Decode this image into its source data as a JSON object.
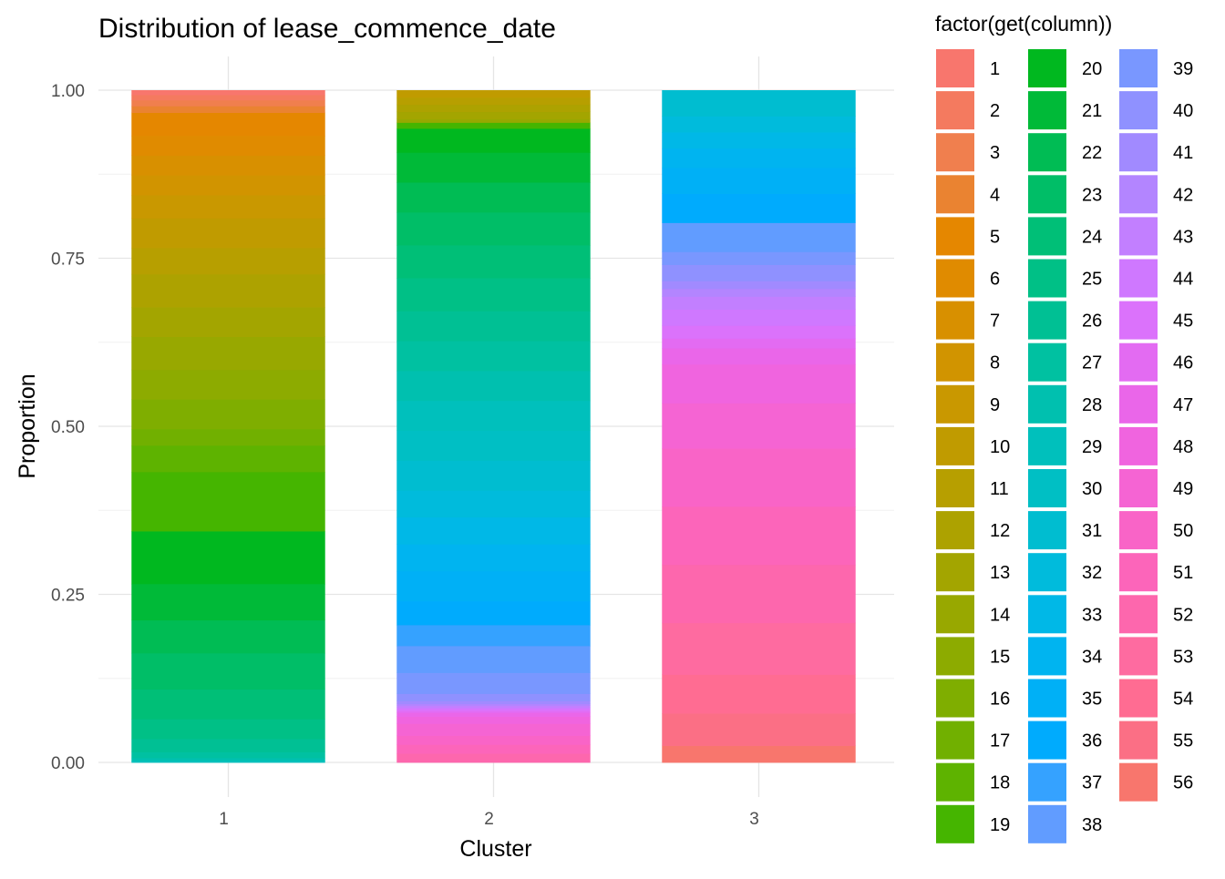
{
  "chart_data": {
    "type": "bar",
    "stacked": true,
    "title": "Distribution of lease_commence_date",
    "xlabel": "Cluster",
    "ylabel": "Proportion",
    "ylim": [
      0,
      1
    ],
    "grid": true,
    "legend_position": "right",
    "legend_title": "factor(get(column))",
    "categories": [
      "1",
      "2",
      "3"
    ],
    "y_ticks": [
      "0.00",
      "0.25",
      "0.50",
      "0.75",
      "1.00"
    ],
    "y_tick_values": [
      0,
      0.25,
      0.5,
      0.75,
      1
    ],
    "legend_levels": [
      "1",
      "2",
      "3",
      "4",
      "5",
      "6",
      "7",
      "8",
      "9",
      "10",
      "11",
      "12",
      "13",
      "14",
      "15",
      "16",
      "17",
      "18",
      "19",
      "20",
      "21",
      "22",
      "23",
      "24",
      "25",
      "26",
      "27",
      "28",
      "29",
      "30",
      "31",
      "32",
      "33",
      "34",
      "35",
      "36",
      "37",
      "38",
      "39",
      "40",
      "41",
      "42",
      "43",
      "44",
      "45",
      "46",
      "47",
      "48",
      "49",
      "50",
      "51",
      "52",
      "53",
      "54",
      "55",
      "56"
    ],
    "level_colors": [
      "#F8766D",
      "#F47A5F",
      "#F07F4E",
      "#EA8331",
      "#E58700",
      "#E08B00",
      "#D89000",
      "#D19400",
      "#C99800",
      "#C09B00",
      "#B79F00",
      "#ADA200",
      "#A3A500",
      "#98A800",
      "#8DAB00",
      "#7FAE00",
      "#71B000",
      "#5EB300",
      "#45B500",
      "#00B81F",
      "#00BA38",
      "#00BC54",
      "#00BE67",
      "#00BF77",
      "#00C086",
      "#00C094",
      "#00C1A1",
      "#00C0AF",
      "#00C0BC",
      "#00BFC4",
      "#00BDD0",
      "#00BBDC",
      "#00B8E7",
      "#00B4F0",
      "#00B0F6",
      "#00ABFD",
      "#35A2FF",
      "#619CFF",
      "#7997FF",
      "#8F91FF",
      "#A18AFF",
      "#B385FF",
      "#C27FFF",
      "#CF78FF",
      "#DB72FB",
      "#E36BF2",
      "#EA66E9",
      "#F064DF",
      "#F564D3",
      "#F964C7",
      "#FC65BA",
      "#FD67AD",
      "#FE6BA0",
      "#FF6C92",
      "#FB6F85",
      "#F8766D"
    ],
    "series_by_cluster": [
      {
        "cluster": "1",
        "segments": [
          {
            "level": "1",
            "value": 0.007
          },
          {
            "level": "2",
            "value": 0.008
          },
          {
            "level": "3",
            "value": 0.009
          },
          {
            "level": "4",
            "value": 0.01
          },
          {
            "level": "5",
            "value": 0.035
          },
          {
            "level": "6",
            "value": 0.03
          },
          {
            "level": "7",
            "value": 0.03
          },
          {
            "level": "8",
            "value": 0.03
          },
          {
            "level": "9",
            "value": 0.035
          },
          {
            "level": "10",
            "value": 0.045
          },
          {
            "level": "11",
            "value": 0.04
          },
          {
            "level": "12",
            "value": 0.05
          },
          {
            "level": "13",
            "value": 0.045
          },
          {
            "level": "14",
            "value": 0.05
          },
          {
            "level": "15",
            "value": 0.045
          },
          {
            "level": "16",
            "value": 0.045
          },
          {
            "level": "17",
            "value": 0.025
          },
          {
            "level": "18",
            "value": 0.04
          },
          {
            "level": "19",
            "value": 0.09
          },
          {
            "level": "20",
            "value": 0.08
          },
          {
            "level": "21",
            "value": 0.055
          },
          {
            "level": "22",
            "value": 0.05
          },
          {
            "level": "23",
            "value": 0.055
          },
          {
            "level": "24",
            "value": 0.045
          },
          {
            "level": "25",
            "value": 0.03
          },
          {
            "level": "26",
            "value": 0.02
          },
          {
            "level": "27",
            "value": 0.009
          },
          {
            "level": "28",
            "value": 0.004
          },
          {
            "level": "29",
            "value": 0.003
          }
        ]
      },
      {
        "cluster": "2",
        "segments": [
          {
            "level": "10",
            "value": 0.012
          },
          {
            "level": "11",
            "value": 0.012
          },
          {
            "level": "12",
            "value": 0.012
          },
          {
            "level": "13",
            "value": 0.012
          },
          {
            "level": "14",
            "value": 0.006
          },
          {
            "level": "19",
            "value": 0.01
          },
          {
            "level": "20",
            "value": 0.04
          },
          {
            "level": "21",
            "value": 0.05
          },
          {
            "level": "22",
            "value": 0.05
          },
          {
            "level": "23",
            "value": 0.055
          },
          {
            "level": "24",
            "value": 0.055
          },
          {
            "level": "25",
            "value": 0.055
          },
          {
            "level": "26",
            "value": 0.05
          },
          {
            "level": "27",
            "value": 0.05
          },
          {
            "level": "28",
            "value": 0.05
          },
          {
            "level": "29",
            "value": 0.05
          },
          {
            "level": "30",
            "value": 0.05
          },
          {
            "level": "31",
            "value": 0.05
          },
          {
            "level": "32",
            "value": 0.045
          },
          {
            "level": "33",
            "value": 0.045
          },
          {
            "level": "34",
            "value": 0.045
          },
          {
            "level": "35",
            "value": 0.05
          },
          {
            "level": "36",
            "value": 0.04
          },
          {
            "level": "37",
            "value": 0.035
          },
          {
            "level": "38",
            "value": 0.045
          },
          {
            "level": "39",
            "value": 0.035
          },
          {
            "level": "40",
            "value": 0.012
          },
          {
            "level": "41",
            "value": 0.005
          },
          {
            "level": "42",
            "value": 0.003
          },
          {
            "level": "43",
            "value": 0.003
          },
          {
            "level": "44",
            "value": 0.003
          },
          {
            "level": "45",
            "value": 0.003
          },
          {
            "level": "46",
            "value": 0.003
          },
          {
            "level": "47",
            "value": 0.006
          },
          {
            "level": "48",
            "value": 0.012
          },
          {
            "level": "49",
            "value": 0.02
          },
          {
            "level": "50",
            "value": 0.015
          },
          {
            "level": "51",
            "value": 0.015
          },
          {
            "level": "52",
            "value": 0.015
          }
        ]
      },
      {
        "cluster": "3",
        "segments": [
          {
            "level": "31",
            "value": 0.04
          },
          {
            "level": "32",
            "value": 0.025
          },
          {
            "level": "33",
            "value": 0.025
          },
          {
            "level": "34",
            "value": 0.03
          },
          {
            "level": "35",
            "value": 0.04
          },
          {
            "level": "36",
            "value": 0.045
          },
          {
            "level": "38",
            "value": 0.045
          },
          {
            "level": "39",
            "value": 0.02
          },
          {
            "level": "40",
            "value": 0.025
          },
          {
            "level": "41",
            "value": 0.012
          },
          {
            "level": "42",
            "value": 0.012
          },
          {
            "level": "43",
            "value": 0.02
          },
          {
            "level": "44",
            "value": 0.025
          },
          {
            "level": "45",
            "value": 0.02
          },
          {
            "level": "46",
            "value": 0.015
          },
          {
            "level": "47",
            "value": 0.025
          },
          {
            "level": "48",
            "value": 0.06
          },
          {
            "level": "49",
            "value": 0.07
          },
          {
            "level": "50",
            "value": 0.09
          },
          {
            "level": "51",
            "value": 0.09
          },
          {
            "level": "52",
            "value": 0.09
          },
          {
            "level": "53",
            "value": 0.08
          },
          {
            "level": "54",
            "value": 0.06
          },
          {
            "level": "55",
            "value": 0.05
          },
          {
            "level": "56",
            "value": 0.026
          }
        ]
      }
    ]
  }
}
